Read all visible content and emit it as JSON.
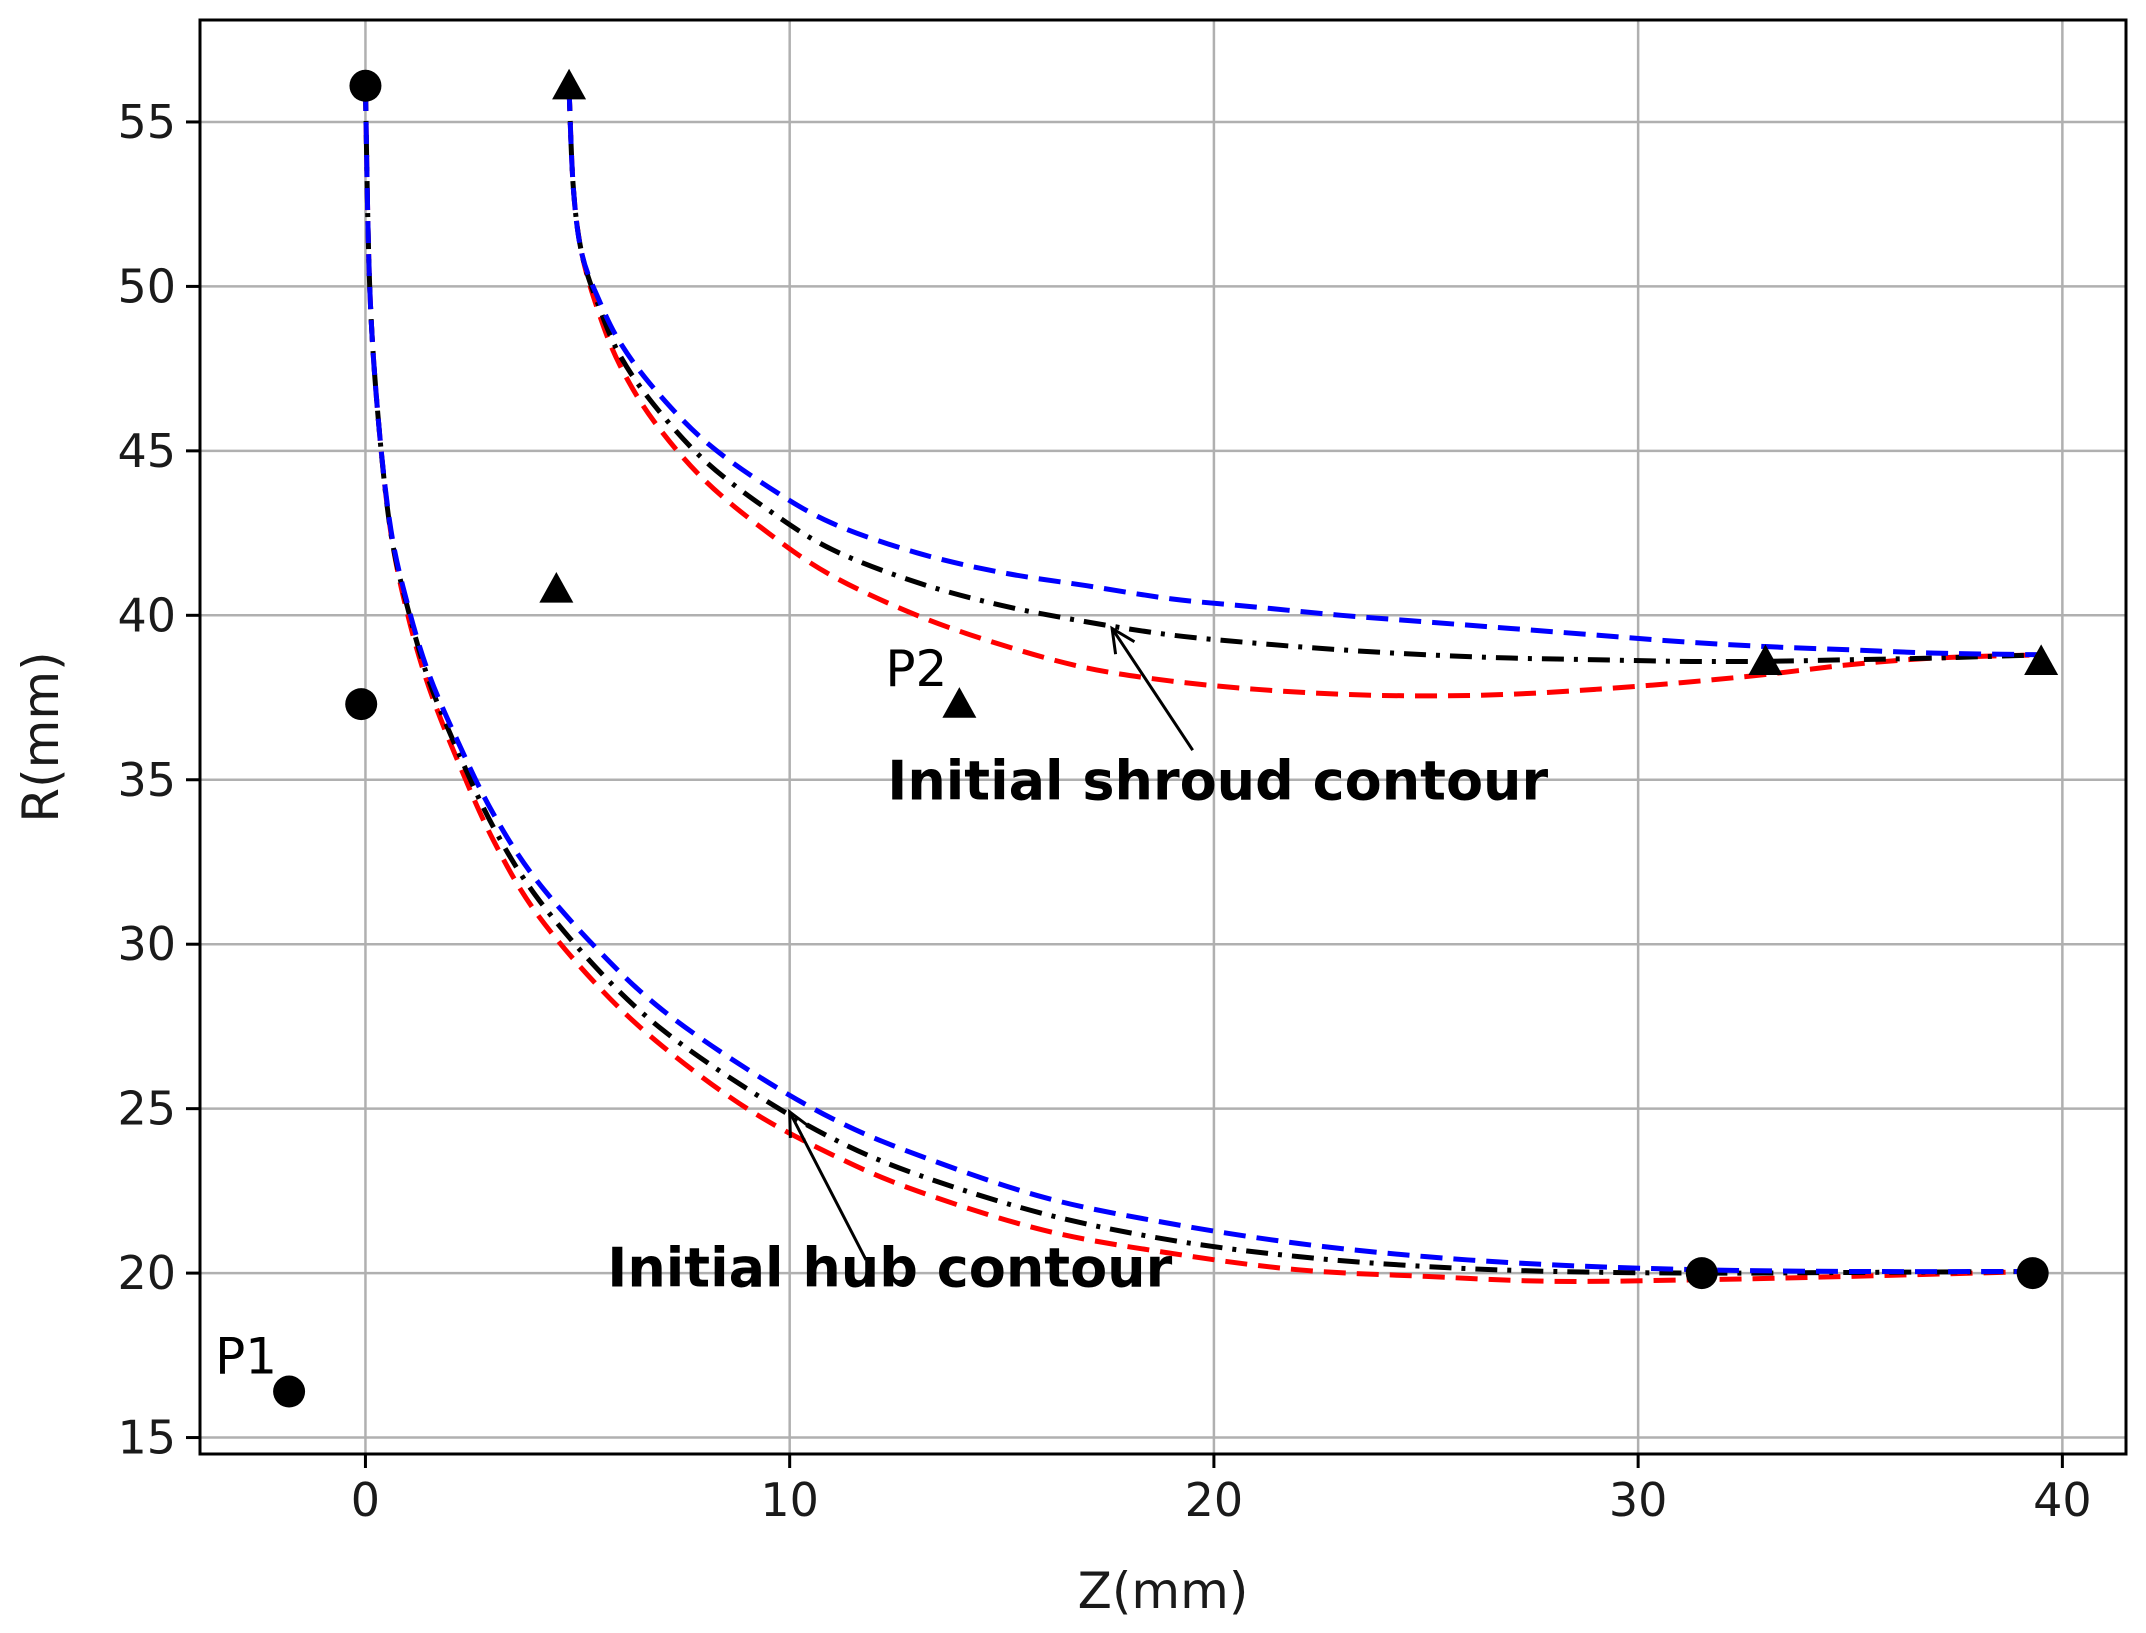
{
  "chart_data": {
    "type": "line",
    "title": "",
    "xlabel": "Z(mm)",
    "ylabel": "R(mm)",
    "xlim": [
      -3.9,
      41.5
    ],
    "ylim": [
      14.5,
      58.1
    ],
    "xticks": [
      0,
      10,
      20,
      30,
      40
    ],
    "yticks": [
      15,
      20,
      25,
      30,
      35,
      40,
      45,
      50,
      55
    ],
    "grid": true,
    "colors": {
      "red": "#ff0000",
      "blue": "#0000ff",
      "black": "#000000",
      "grid": "#b0b0b0"
    },
    "series": [
      {
        "color": "#ff0000",
        "style": "dashed",
        "x": [
          0,
          0.1,
          0.3,
          0.6,
          1,
          1.5,
          2.2,
          3,
          4,
          5.5,
          7,
          9,
          11,
          13,
          16,
          19,
          22,
          25,
          28,
          31.5,
          35,
          39.3
        ],
        "y": [
          56,
          50,
          46,
          42.5,
          40,
          37.8,
          35.5,
          33.2,
          31,
          28.7,
          26.9,
          25,
          23.6,
          22.5,
          21.3,
          20.6,
          20.1,
          19.9,
          19.75,
          19.8,
          19.9,
          20.05
        ]
      },
      {
        "color": "#000000",
        "style": "dashdot",
        "x": [
          0,
          0.1,
          0.3,
          0.6,
          1,
          1.5,
          2.2,
          3,
          4,
          5.5,
          7,
          9,
          11,
          13,
          16,
          19,
          22,
          25,
          28,
          31.5,
          35,
          39.3
        ],
        "y": [
          56,
          50,
          46,
          42.5,
          40.2,
          38,
          35.8,
          33.6,
          31.5,
          29.2,
          27.4,
          25.6,
          24.1,
          23,
          21.8,
          21,
          20.5,
          20.2,
          20.05,
          20,
          20.02,
          20.05
        ]
      },
      {
        "color": "#0000ff",
        "style": "dashed",
        "x": [
          0,
          0.1,
          0.3,
          0.6,
          1,
          1.5,
          2.2,
          3,
          4,
          5.5,
          7,
          9,
          11,
          13,
          16,
          19,
          22,
          25,
          28,
          31.5,
          35,
          39.3
        ],
        "y": [
          56,
          50,
          46,
          42.6,
          40.3,
          38.2,
          36.1,
          34,
          32,
          29.8,
          28,
          26.2,
          24.7,
          23.6,
          22.3,
          21.5,
          20.9,
          20.5,
          20.25,
          20.1,
          20.05,
          20.05
        ]
      },
      {
        "color": "#ff0000",
        "style": "dashed",
        "x": [
          4.8,
          4.9,
          5.1,
          5.5,
          6,
          6.8,
          8,
          9.5,
          11,
          13,
          15,
          17,
          19,
          21,
          23,
          25,
          27,
          29,
          31,
          33,
          35,
          37,
          39.5
        ],
        "y": [
          56,
          53,
          51,
          49.2,
          47.6,
          45.9,
          44.1,
          42.5,
          41.2,
          40,
          39.1,
          38.4,
          38,
          37.75,
          37.6,
          37.55,
          37.6,
          37.75,
          37.95,
          38.2,
          38.5,
          38.7,
          38.8
        ]
      },
      {
        "color": "#000000",
        "style": "dashdot",
        "x": [
          4.8,
          4.9,
          5.1,
          5.5,
          6,
          6.8,
          8,
          9.5,
          11,
          13,
          15,
          17,
          19,
          21,
          23,
          25,
          27,
          29,
          31,
          33,
          35,
          37,
          39.5
        ],
        "y": [
          56,
          53,
          51,
          49.4,
          47.9,
          46.4,
          44.7,
          43.2,
          42,
          41,
          40.3,
          39.8,
          39.4,
          39.15,
          38.95,
          38.8,
          38.7,
          38.65,
          38.6,
          38.6,
          38.65,
          38.7,
          38.8
        ]
      },
      {
        "color": "#0000ff",
        "style": "dashed",
        "x": [
          4.8,
          4.9,
          5.1,
          5.5,
          6,
          6.8,
          8,
          9.5,
          11,
          13,
          15,
          17,
          19,
          21,
          23,
          25,
          27,
          29,
          31,
          33,
          35,
          37,
          39.5
        ],
        "y": [
          56,
          53,
          51,
          49.6,
          48.3,
          46.9,
          45.3,
          43.9,
          42.8,
          41.9,
          41.3,
          40.9,
          40.5,
          40.25,
          40,
          39.8,
          39.6,
          39.4,
          39.2,
          39.05,
          38.95,
          38.85,
          38.8
        ]
      }
    ],
    "hub_points": [
      {
        "x": 0,
        "y": 56.1
      },
      {
        "x": -0.1,
        "y": 37.3
      },
      {
        "x": -1.8,
        "y": 16.4,
        "label": "P1"
      },
      {
        "x": 31.5,
        "y": 20.0
      },
      {
        "x": 39.3,
        "y": 20.0
      }
    ],
    "shroud_points": [
      {
        "x": 4.8,
        "y": 56.1
      },
      {
        "x": 4.5,
        "y": 40.8
      },
      {
        "x": 14.0,
        "y": 37.3,
        "label": "P2"
      },
      {
        "x": 33.0,
        "y": 38.6
      },
      {
        "x": 39.5,
        "y": 38.6
      }
    ],
    "annotations": [
      {
        "text": "Initial shroud contour",
        "text_x": 12.3,
        "text_y": 34.4,
        "arrow_from": [
          19.5,
          35.9
        ],
        "arrow_to": [
          17.6,
          39.6
        ]
      },
      {
        "text": "Initial hub contour",
        "text_x": 5.7,
        "text_y": 19.6,
        "arrow_from": [
          11.8,
          20.4
        ],
        "arrow_to": [
          10.0,
          24.9
        ]
      }
    ]
  }
}
